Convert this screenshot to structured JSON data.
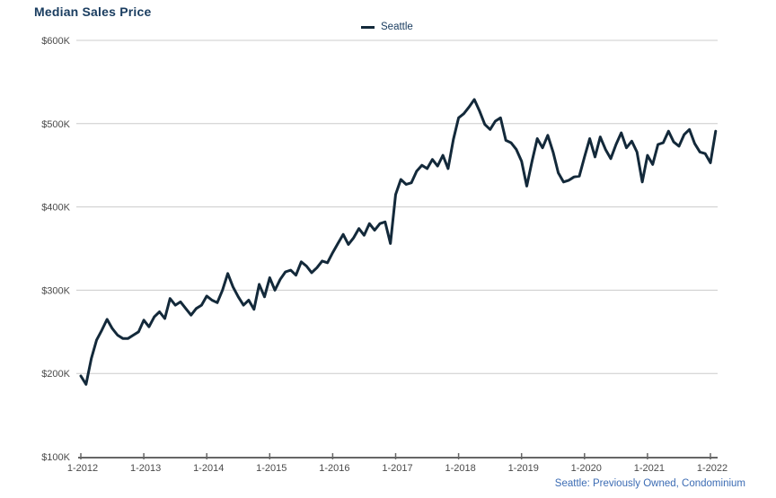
{
  "title": "Median Sales Price",
  "legend": {
    "label": "Seattle"
  },
  "footer": "Seattle: Previously Owned, Condominium",
  "colors": {
    "line": "#13293a",
    "title": "#1a3d60",
    "grid": "#cccccc",
    "axis": "#666666",
    "tick_label": "#4a4a4a",
    "footer": "#3c6cb4"
  },
  "chart_data": {
    "type": "line",
    "title": "Median Sales Price",
    "xlabel": "",
    "ylabel": "",
    "y_unit": "USD thousands ($K)",
    "x_frequency": "monthly",
    "x_start": "1-2012",
    "x_end": "2-2022",
    "ylim_k": [
      100,
      600
    ],
    "grid": "horizontal",
    "legend_position": "top-center",
    "y_ticks": [
      {
        "label": "$600K",
        "value": 600
      },
      {
        "label": "$500K",
        "value": 500
      },
      {
        "label": "$400K",
        "value": 400
      },
      {
        "label": "$300K",
        "value": 300
      },
      {
        "label": "$200K",
        "value": 200
      },
      {
        "label": "$100K",
        "value": 100
      }
    ],
    "x_ticks": [
      {
        "label": "1-2012",
        "month": 0
      },
      {
        "label": "1-2013",
        "month": 12
      },
      {
        "label": "1-2014",
        "month": 24
      },
      {
        "label": "1-2015",
        "month": 36
      },
      {
        "label": "1-2016",
        "month": 48
      },
      {
        "label": "1-2017",
        "month": 60
      },
      {
        "label": "1-2018",
        "month": 72
      },
      {
        "label": "1-2019",
        "month": 84
      },
      {
        "label": "1-2020",
        "month": 96
      },
      {
        "label": "1-2021",
        "month": 108
      },
      {
        "label": "1-2022",
        "month": 120
      }
    ],
    "series": [
      {
        "name": "Seattle",
        "values_k": [
          197,
          187,
          218,
          240,
          252,
          265,
          254,
          246,
          242,
          242,
          246,
          250,
          264,
          256,
          268,
          274,
          266,
          290,
          282,
          286,
          278,
          270,
          278,
          282,
          293,
          288,
          285,
          300,
          320,
          304,
          292,
          282,
          288,
          277,
          307,
          292,
          315,
          300,
          313,
          322,
          324,
          318,
          334,
          329,
          321,
          327,
          335,
          333,
          345,
          356,
          367,
          355,
          363,
          374,
          366,
          380,
          372,
          380,
          382,
          356,
          415,
          433,
          427,
          429,
          443,
          450,
          446,
          457,
          449,
          462,
          446,
          481,
          507,
          512,
          520,
          529,
          515,
          499,
          493,
          503,
          507,
          480,
          477,
          469,
          455,
          425,
          455,
          482,
          471,
          486,
          466,
          441,
          430,
          432,
          436,
          437,
          460,
          482,
          460,
          484,
          469,
          458,
          475,
          489,
          471,
          479,
          466,
          430,
          462,
          451,
          475,
          477,
          491,
          478,
          473,
          487,
          493,
          476,
          466,
          464,
          453,
          491
        ]
      }
    ]
  }
}
